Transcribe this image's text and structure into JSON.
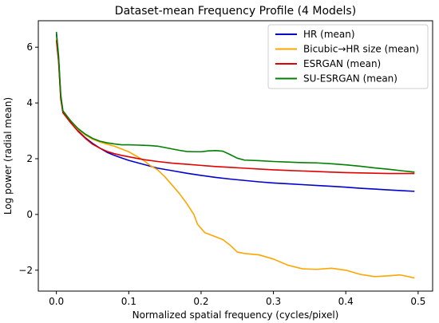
{
  "chart_data": {
    "type": "line",
    "title": "Dataset-mean Frequency Profile (4 Models)",
    "xlabel": "Normalized spatial frequency (cycles/pixel)",
    "ylabel": "Log power (radial mean)",
    "xlim": [
      -0.025,
      0.52
    ],
    "ylim": [
      -2.75,
      6.95
    ],
    "xticks": [
      0.0,
      0.1,
      0.2,
      0.3,
      0.4,
      0.5
    ],
    "xtick_labels": [
      "0.0",
      "0.1",
      "0.2",
      "0.3",
      "0.4",
      "0.5"
    ],
    "yticks": [
      -2,
      0,
      2,
      4,
      6
    ],
    "ytick_labels": [
      "−2",
      "0",
      "2",
      "4",
      "6"
    ],
    "grid": false,
    "legend_position": "top-right",
    "series": [
      {
        "name": "HR (mean)",
        "color": "#0000cc",
        "points": [
          [
            0.0,
            6.5
          ],
          [
            0.003,
            5.6
          ],
          [
            0.006,
            4.2
          ],
          [
            0.009,
            3.68
          ],
          [
            0.02,
            3.3
          ],
          [
            0.03,
            3.0
          ],
          [
            0.04,
            2.75
          ],
          [
            0.05,
            2.55
          ],
          [
            0.06,
            2.38
          ],
          [
            0.07,
            2.23
          ],
          [
            0.08,
            2.12
          ],
          [
            0.09,
            2.03
          ],
          [
            0.1,
            1.94
          ],
          [
            0.12,
            1.8
          ],
          [
            0.14,
            1.66
          ],
          [
            0.16,
            1.57
          ],
          [
            0.18,
            1.48
          ],
          [
            0.2,
            1.4
          ],
          [
            0.22,
            1.33
          ],
          [
            0.24,
            1.27
          ],
          [
            0.26,
            1.22
          ],
          [
            0.28,
            1.17
          ],
          [
            0.3,
            1.13
          ],
          [
            0.32,
            1.1
          ],
          [
            0.34,
            1.07
          ],
          [
            0.36,
            1.04
          ],
          [
            0.38,
            1.01
          ],
          [
            0.4,
            0.98
          ],
          [
            0.42,
            0.94
          ],
          [
            0.44,
            0.91
          ],
          [
            0.46,
            0.88
          ],
          [
            0.48,
            0.85
          ],
          [
            0.495,
            0.83
          ]
        ]
      },
      {
        "name": "Bicubic→HR size (mean)",
        "color": "#ffa500",
        "points": [
          [
            0.0,
            6.3
          ],
          [
            0.003,
            5.5
          ],
          [
            0.006,
            4.2
          ],
          [
            0.009,
            3.7
          ],
          [
            0.02,
            3.35
          ],
          [
            0.03,
            3.05
          ],
          [
            0.04,
            2.85
          ],
          [
            0.05,
            2.7
          ],
          [
            0.06,
            2.6
          ],
          [
            0.07,
            2.52
          ],
          [
            0.08,
            2.45
          ],
          [
            0.09,
            2.35
          ],
          [
            0.1,
            2.25
          ],
          [
            0.11,
            2.1
          ],
          [
            0.12,
            1.95
          ],
          [
            0.13,
            1.75
          ],
          [
            0.14,
            1.6
          ],
          [
            0.15,
            1.35
          ],
          [
            0.16,
            1.05
          ],
          [
            0.17,
            0.75
          ],
          [
            0.18,
            0.4
          ],
          [
            0.19,
            0.0
          ],
          [
            0.195,
            -0.35
          ],
          [
            0.205,
            -0.65
          ],
          [
            0.215,
            -0.75
          ],
          [
            0.23,
            -0.9
          ],
          [
            0.24,
            -1.1
          ],
          [
            0.25,
            -1.35
          ],
          [
            0.26,
            -1.4
          ],
          [
            0.28,
            -1.45
          ],
          [
            0.3,
            -1.6
          ],
          [
            0.32,
            -1.82
          ],
          [
            0.34,
            -1.95
          ],
          [
            0.36,
            -1.97
          ],
          [
            0.38,
            -1.93
          ],
          [
            0.4,
            -2.0
          ],
          [
            0.42,
            -2.15
          ],
          [
            0.44,
            -2.23
          ],
          [
            0.46,
            -2.2
          ],
          [
            0.475,
            -2.17
          ],
          [
            0.485,
            -2.22
          ],
          [
            0.495,
            -2.28
          ]
        ]
      },
      {
        "name": "ESRGAN (mean)",
        "color": "#e00000",
        "points": [
          [
            0.0,
            6.25
          ],
          [
            0.003,
            5.5
          ],
          [
            0.006,
            4.15
          ],
          [
            0.009,
            3.65
          ],
          [
            0.02,
            3.28
          ],
          [
            0.03,
            2.98
          ],
          [
            0.04,
            2.73
          ],
          [
            0.05,
            2.52
          ],
          [
            0.06,
            2.38
          ],
          [
            0.07,
            2.26
          ],
          [
            0.08,
            2.18
          ],
          [
            0.09,
            2.12
          ],
          [
            0.1,
            2.07
          ],
          [
            0.11,
            2.02
          ],
          [
            0.12,
            1.97
          ],
          [
            0.14,
            1.9
          ],
          [
            0.16,
            1.84
          ],
          [
            0.18,
            1.8
          ],
          [
            0.2,
            1.76
          ],
          [
            0.22,
            1.72
          ],
          [
            0.24,
            1.69
          ],
          [
            0.26,
            1.66
          ],
          [
            0.28,
            1.63
          ],
          [
            0.3,
            1.6
          ],
          [
            0.32,
            1.58
          ],
          [
            0.34,
            1.56
          ],
          [
            0.36,
            1.54
          ],
          [
            0.38,
            1.52
          ],
          [
            0.4,
            1.5
          ],
          [
            0.42,
            1.49
          ],
          [
            0.44,
            1.48
          ],
          [
            0.46,
            1.47
          ],
          [
            0.48,
            1.47
          ],
          [
            0.495,
            1.47
          ]
        ]
      },
      {
        "name": "SU-ESRGAN (mean)",
        "color": "#008000",
        "points": [
          [
            0.0,
            6.55
          ],
          [
            0.003,
            5.7
          ],
          [
            0.006,
            4.3
          ],
          [
            0.009,
            3.72
          ],
          [
            0.02,
            3.35
          ],
          [
            0.03,
            3.08
          ],
          [
            0.04,
            2.88
          ],
          [
            0.05,
            2.73
          ],
          [
            0.06,
            2.63
          ],
          [
            0.07,
            2.57
          ],
          [
            0.08,
            2.53
          ],
          [
            0.09,
            2.5
          ],
          [
            0.1,
            2.5
          ],
          [
            0.11,
            2.49
          ],
          [
            0.12,
            2.48
          ],
          [
            0.13,
            2.47
          ],
          [
            0.14,
            2.45
          ],
          [
            0.15,
            2.4
          ],
          [
            0.16,
            2.35
          ],
          [
            0.17,
            2.3
          ],
          [
            0.18,
            2.26
          ],
          [
            0.19,
            2.25
          ],
          [
            0.2,
            2.25
          ],
          [
            0.21,
            2.28
          ],
          [
            0.22,
            2.29
          ],
          [
            0.23,
            2.27
          ],
          [
            0.24,
            2.15
          ],
          [
            0.25,
            2.02
          ],
          [
            0.26,
            1.95
          ],
          [
            0.28,
            1.93
          ],
          [
            0.3,
            1.9
          ],
          [
            0.32,
            1.88
          ],
          [
            0.34,
            1.86
          ],
          [
            0.36,
            1.85
          ],
          [
            0.38,
            1.82
          ],
          [
            0.4,
            1.78
          ],
          [
            0.42,
            1.73
          ],
          [
            0.44,
            1.67
          ],
          [
            0.46,
            1.62
          ],
          [
            0.48,
            1.56
          ],
          [
            0.495,
            1.52
          ]
        ]
      }
    ]
  }
}
